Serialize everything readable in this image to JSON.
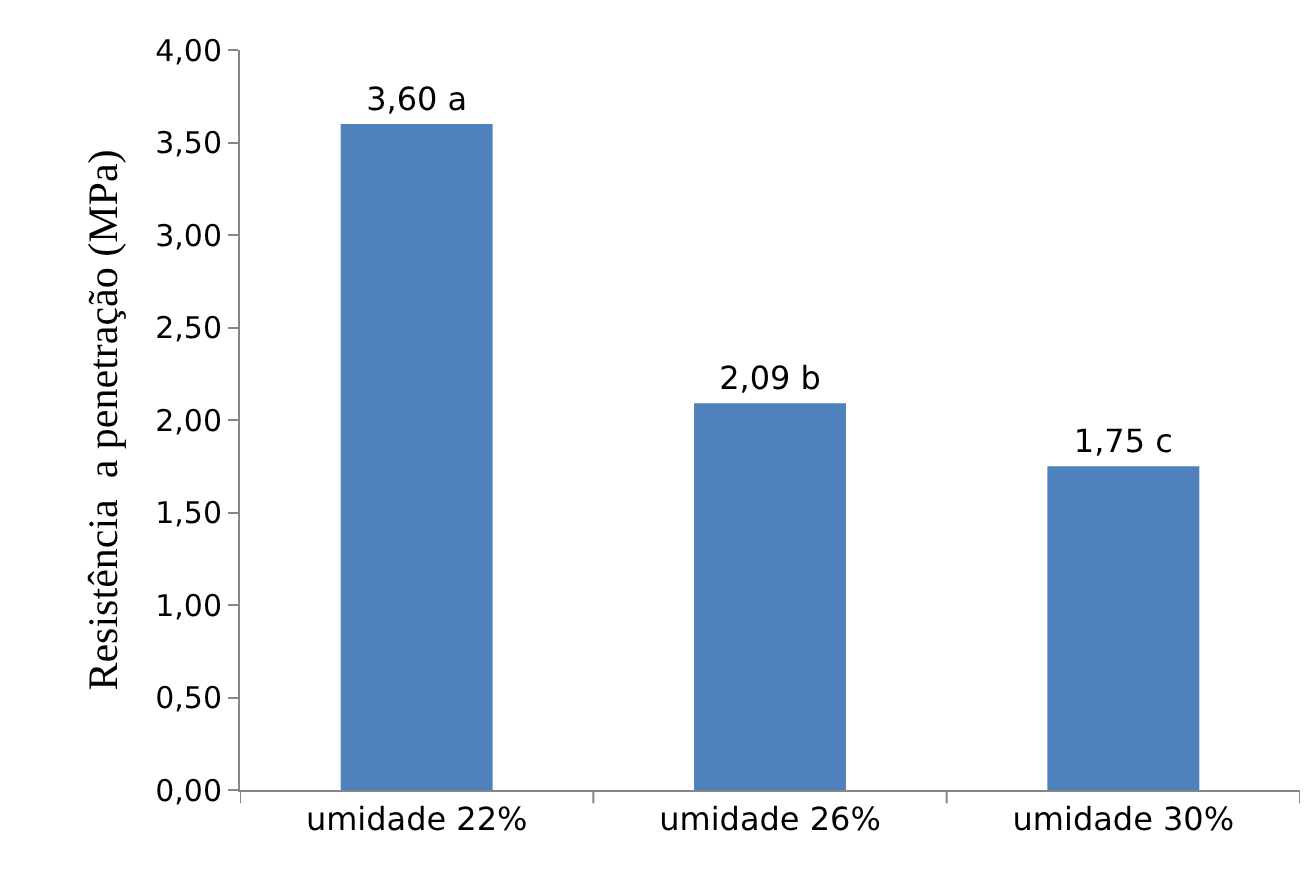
{
  "chart_data": {
    "type": "bar",
    "ylabel": "Resistência  a penetração (MPa)",
    "categories": [
      "umidade 22%",
      "umidade 26%",
      "umidade 30%"
    ],
    "values": [
      3.6,
      2.09,
      1.75
    ],
    "value_labels": [
      "3,60 a",
      "2,09 b",
      "1,75 c"
    ],
    "color": "#4f81bd",
    "ylim": [
      0,
      4
    ],
    "yticks": [
      {
        "value": 0,
        "label": "0,00"
      },
      {
        "value": 0.5,
        "label": "0,50"
      },
      {
        "value": 1,
        "label": "1,00"
      },
      {
        "value": 1.5,
        "label": "1,50"
      },
      {
        "value": 2,
        "label": "2,00"
      },
      {
        "value": 2.5,
        "label": "2,50"
      },
      {
        "value": 3,
        "label": "3,00"
      },
      {
        "value": 3.5,
        "label": "3,50"
      },
      {
        "value": 4,
        "label": "4,00"
      }
    ],
    "grid": false,
    "legend": false
  }
}
